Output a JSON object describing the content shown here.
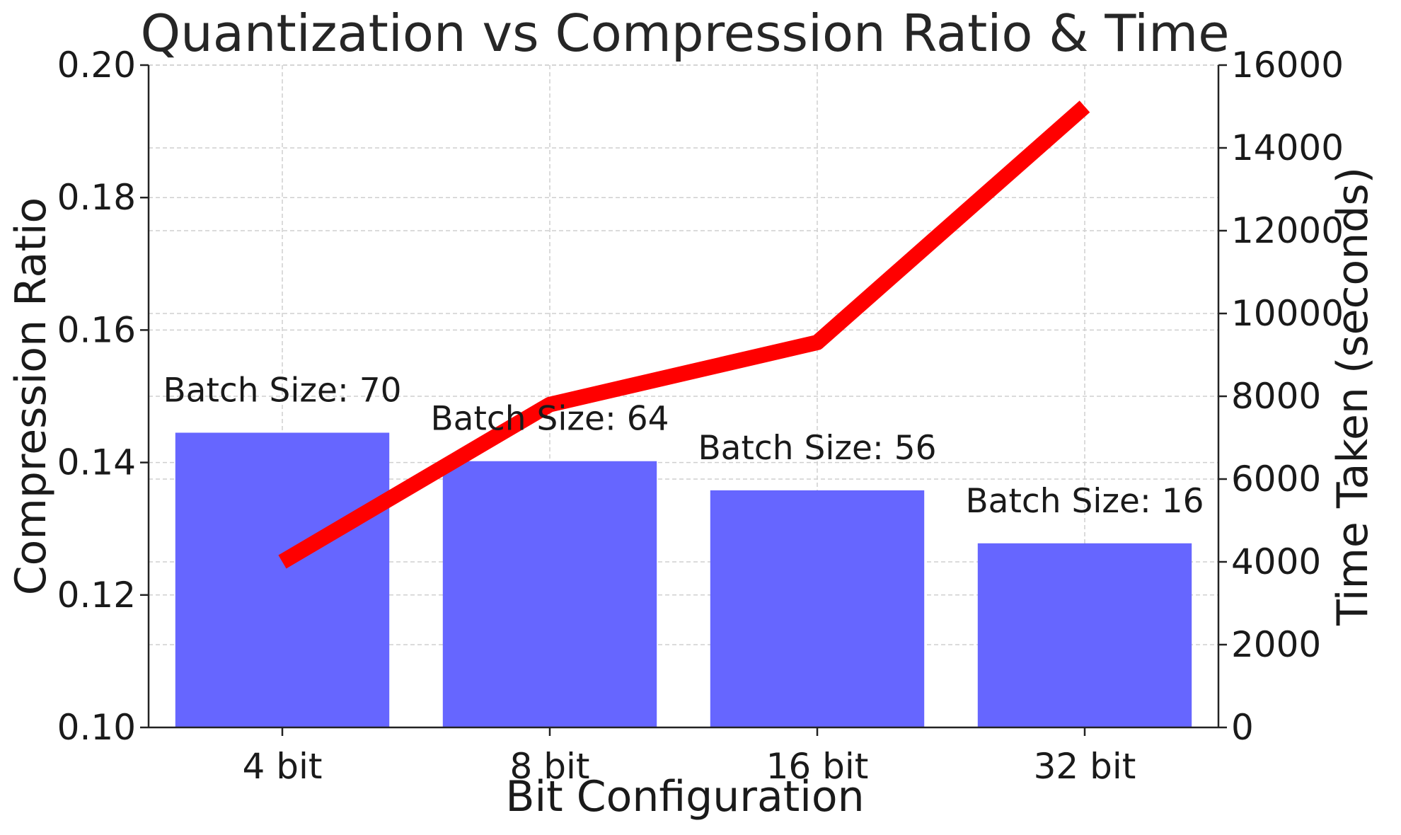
{
  "chart_data": {
    "type": "bar",
    "title": "Quantization vs Compression Ratio & Time",
    "xlabel": "Bit Configuration",
    "ylabel": "Compression Ratio",
    "y2label": "Time Taken (seconds)",
    "categories": [
      "4 bit",
      "8 bit",
      "16 bit",
      "32 bit"
    ],
    "ylim": [
      0.1,
      0.2
    ],
    "yticks": [
      0.1,
      0.12,
      0.14,
      0.16,
      0.18,
      0.2
    ],
    "ytick_labels": [
      "0.10",
      "0.12",
      "0.14",
      "0.16",
      "0.18",
      "0.20"
    ],
    "y2lim": [
      0,
      16000
    ],
    "y2ticks": [
      0,
      2000,
      4000,
      6000,
      8000,
      10000,
      12000,
      14000,
      16000
    ],
    "y2tick_labels": [
      "0",
      "2000",
      "4000",
      "6000",
      "8000",
      "10000",
      "12000",
      "14000",
      "16000"
    ],
    "grid": true,
    "series": [
      {
        "type": "bar",
        "axis": "left",
        "color": "#6666ff",
        "values": [
          0.1445,
          0.1402,
          0.1358,
          0.1278
        ]
      },
      {
        "type": "line",
        "axis": "right",
        "color": "#ff0000",
        "values": [
          4000,
          7800,
          9300,
          15000
        ]
      }
    ],
    "annotations": [
      "Batch Size: 70",
      "Batch Size: 64",
      "Batch Size: 56",
      "Batch Size: 16"
    ]
  }
}
